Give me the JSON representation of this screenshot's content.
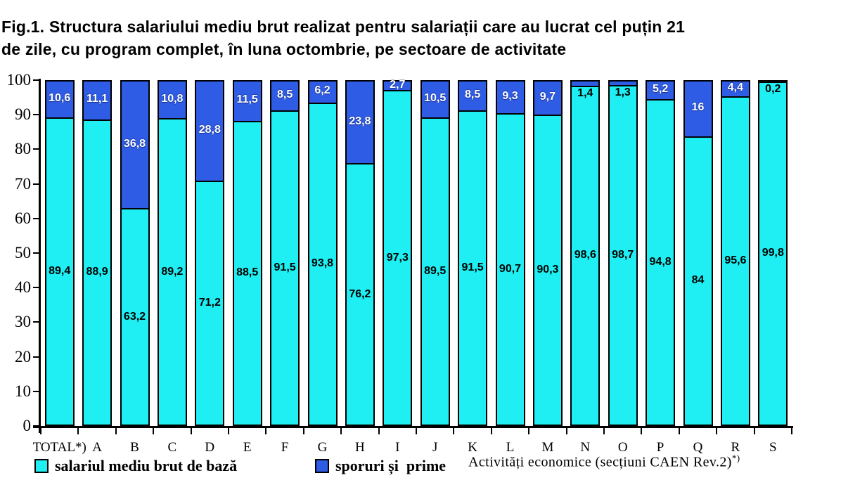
{
  "title": {
    "line1": "Fig.1. Structura salariului mediu brut realizat pentru salariații care au lucrat cel puțin 21",
    "line2": "de zile, cu program complet, în luna octombrie, pe sectoare de activitate"
  },
  "chart_data": {
    "type": "bar",
    "stacked": true,
    "percent": true,
    "title": "Fig.1. Structura salariului mediu brut realizat pentru salariații care au lucrat cel puțin 21 de zile, cu program complet, în luna octombrie, pe sectoare de activitate",
    "categories": [
      "TOTAL*)",
      "A",
      "B",
      "C",
      "D",
      "E",
      "F",
      "G",
      "H",
      "I",
      "J",
      "K",
      "L",
      "M",
      "N",
      "O",
      "P",
      "Q",
      "R",
      "S"
    ],
    "series": [
      {
        "name": "salariul mediu brut de bază",
        "color": "#1FEFF2",
        "values": [
          89.4,
          88.9,
          63.2,
          89.2,
          71.2,
          88.5,
          91.5,
          93.8,
          76.2,
          97.3,
          89.5,
          91.5,
          90.7,
          90.3,
          98.6,
          98.7,
          94.8,
          84,
          95.6,
          99.8
        ],
        "labels": [
          "89,4",
          "88,9",
          "63,2",
          "89,2",
          "71,2",
          "88,5",
          "91,5",
          "93,8",
          "76,2",
          "97,3",
          "89,5",
          "91,5",
          "90,7",
          "90,3",
          "98,6",
          "98,7",
          "94,8",
          "84",
          "95,6",
          "99,8"
        ]
      },
      {
        "name": "sporuri și prime",
        "color": "#2F5CE4",
        "values": [
          10.6,
          11.1,
          36.8,
          10.8,
          28.8,
          11.5,
          8.5,
          6.2,
          23.8,
          2.7,
          10.5,
          8.5,
          9.3,
          9.7,
          1.4,
          1.3,
          5.2,
          16,
          4.4,
          0.2
        ],
        "labels": [
          "10,6",
          "11,1",
          "36,8",
          "10,8",
          "28,8",
          "11,5",
          "8,5",
          "6,2",
          "23,8",
          "2,7",
          "10,5",
          "8,5",
          "9,3",
          "9,7",
          "1,4",
          "1,3",
          "5,2",
          "16",
          "4,4",
          "0,2"
        ]
      }
    ],
    "ylim": [
      0,
      100
    ],
    "yticks": [
      "0",
      "10",
      "20",
      "30",
      "40",
      "50",
      "60",
      "70",
      "80",
      "90",
      "100"
    ],
    "grid": false,
    "legend_position": "bottom",
    "xlabel": "Activități economice (secțiuni CAEN Rev.2)*)"
  },
  "legend": {
    "items": [
      {
        "label": "salariul mediu brut de bază",
        "color": "#1FEFF2"
      },
      {
        "label": "sporuri și  prime",
        "color": "#2F5CE4"
      }
    ]
  },
  "x_axis_title": {
    "main": "Activități economice (secțiuni CAEN Rev.2)",
    "sup": "*)"
  },
  "colors": {
    "bar_base": "#1FEFF2",
    "bar_bonus": "#2F5CE4",
    "outline": "#000000",
    "background": "#FFFFFF"
  }
}
